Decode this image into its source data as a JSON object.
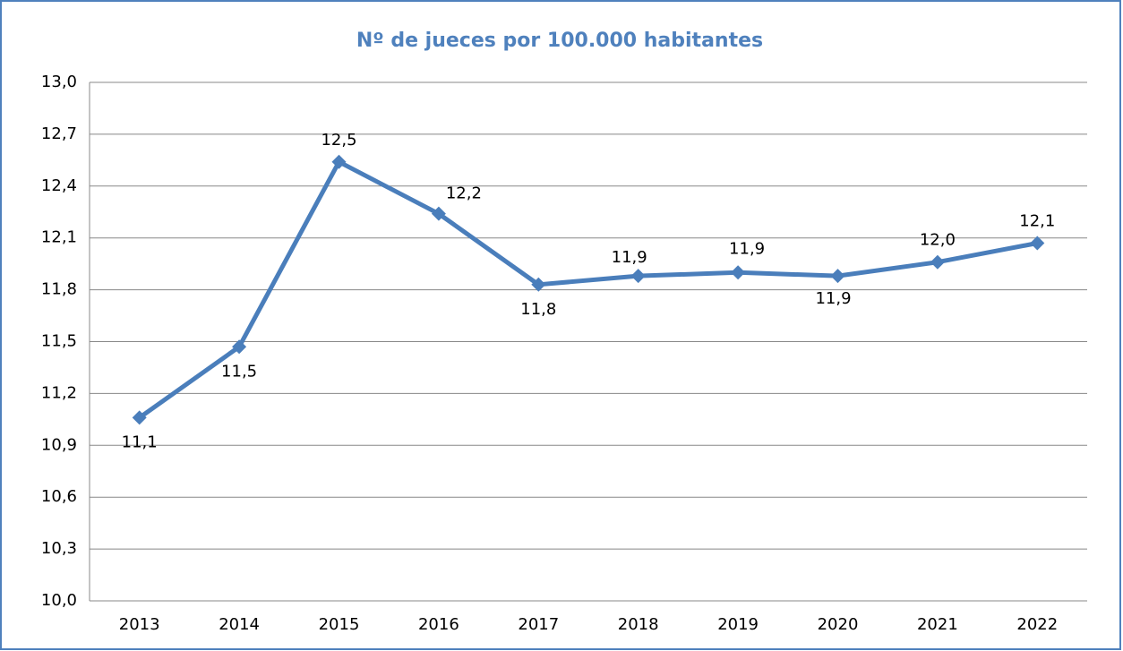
{
  "chart_data": {
    "type": "line",
    "title": "Nº de jueces por 100.000 habitantes",
    "categories": [
      "2013",
      "2014",
      "2015",
      "2016",
      "2017",
      "2018",
      "2019",
      "2020",
      "2021",
      "2022"
    ],
    "series": [
      {
        "name": "Nº de jueces por 100.000 habitantes",
        "color": "#4a7ebb",
        "values": [
          11.06,
          11.47,
          12.54,
          12.24,
          11.83,
          11.88,
          11.9,
          11.88,
          11.96,
          12.07
        ],
        "value_labels": [
          "11,1",
          "11,5",
          "12,5",
          "12,2",
          "11,8",
          "11,9",
          "11,9",
          "11,9",
          "12,0",
          "12,1"
        ]
      }
    ],
    "ylim": [
      10,
      13
    ],
    "yticks": [
      {
        "value": 10,
        "label": "10,0"
      },
      {
        "value": 10.3,
        "label": "10,3"
      },
      {
        "value": 10.6,
        "label": "10,6"
      },
      {
        "value": 10.9,
        "label": "10,9"
      },
      {
        "value": 11.2,
        "label": "11,2"
      },
      {
        "value": 11.5,
        "label": "11,5"
      },
      {
        "value": 11.8,
        "label": "11,8"
      },
      {
        "value": 12.1,
        "label": "12,1"
      },
      {
        "value": 12.4,
        "label": "12,4"
      },
      {
        "value": 12.7,
        "label": "12,7"
      },
      {
        "value": 13,
        "label": "13,0"
      }
    ],
    "grid": true
  }
}
